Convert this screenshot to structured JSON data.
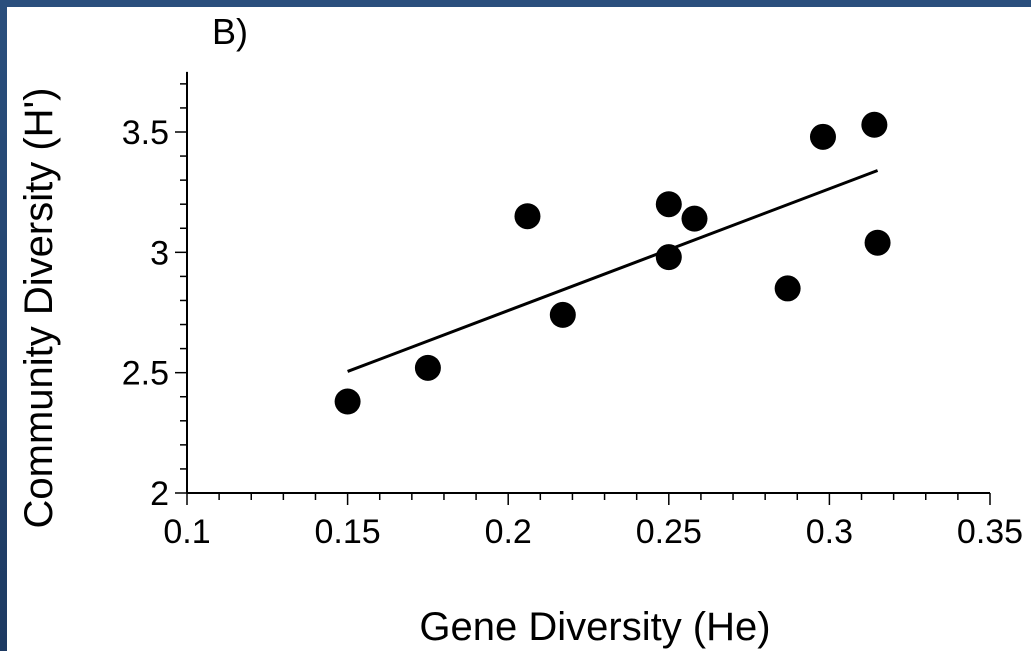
{
  "chart_data": {
    "type": "scatter",
    "panel_label": "B)",
    "xlabel": "Gene Diversity (He)",
    "ylabel": "Community Diversity (H')",
    "xlim": [
      0.1,
      0.35
    ],
    "ylim": [
      2,
      3.75
    ],
    "x_ticks": [
      0.1,
      0.15,
      0.2,
      0.25,
      0.3,
      0.35
    ],
    "x_tick_labels": [
      "0.1",
      "0.15",
      "0.2",
      "0.25",
      "0.3",
      "0.35"
    ],
    "y_ticks": [
      2,
      2.5,
      3,
      3.5
    ],
    "y_tick_labels": [
      "2",
      "2.5",
      "3",
      "3.5"
    ],
    "grid": false,
    "points": [
      {
        "x": 0.15,
        "y": 2.38
      },
      {
        "x": 0.175,
        "y": 2.52
      },
      {
        "x": 0.206,
        "y": 3.15
      },
      {
        "x": 0.217,
        "y": 2.74
      },
      {
        "x": 0.25,
        "y": 3.2
      },
      {
        "x": 0.25,
        "y": 2.98
      },
      {
        "x": 0.258,
        "y": 3.14
      },
      {
        "x": 0.287,
        "y": 2.85
      },
      {
        "x": 0.298,
        "y": 3.48
      },
      {
        "x": 0.314,
        "y": 3.53
      },
      {
        "x": 0.315,
        "y": 3.04
      }
    ],
    "trend_line": {
      "x": [
        0.15,
        0.315
      ],
      "y": [
        2.505,
        3.34
      ]
    },
    "point_color": "#000000"
  }
}
